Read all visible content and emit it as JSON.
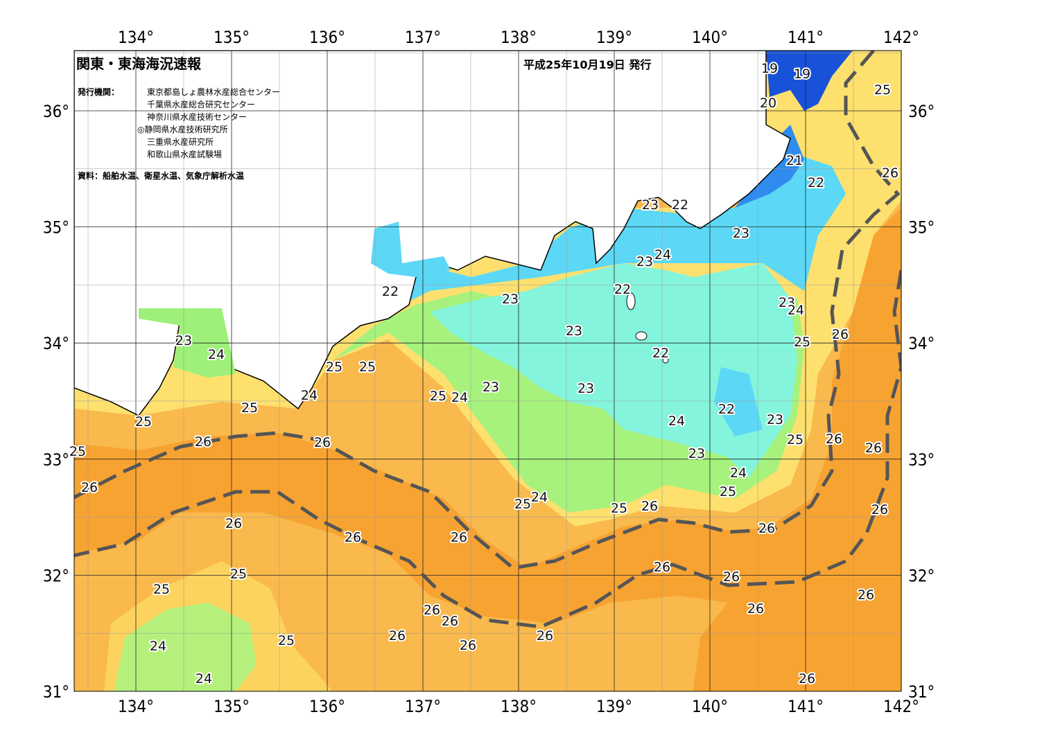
{
  "title": "関東・東海海況速報",
  "date": "平成25年10月19日 発行",
  "issuers_label": "発行機関：",
  "issuers": [
    "東京都島しょ農林水産総合センター",
    "千葉県水産総合研究センター",
    "神奈川県水産技術センター",
    "◎静岡県水産技術研究所",
    "三重県水産研究所",
    "和歌山県水産試験場"
  ],
  "source": "資料：船舶水温、衛星水温、気象庁解析水温",
  "lon_labels": [
    "134°",
    "135°",
    "136°",
    "137°",
    "138°",
    "139°",
    "140°",
    "141°",
    "142°"
  ],
  "lat_labels": [
    "36°",
    "35°",
    "34°",
    "33°",
    "32°",
    "31°"
  ],
  "contour_labels": [
    "19",
    "19",
    "20",
    "21",
    "22",
    "25",
    "26",
    "23",
    "22",
    "23",
    "24",
    "23",
    "22",
    "22",
    "23",
    "23",
    "24",
    "23",
    "26",
    "25",
    "23",
    "22",
    "24",
    "25",
    "25",
    "23",
    "23",
    "25",
    "24",
    "24",
    "25",
    "22",
    "24",
    "23",
    "25",
    "26",
    "25",
    "26",
    "26",
    "26",
    "23",
    "25",
    "24",
    "26",
    "25",
    "24",
    "25",
    "25",
    "26",
    "26",
    "26",
    "26",
    "26",
    "26",
    "26",
    "25",
    "26",
    "25",
    "26",
    "26",
    "26",
    "26",
    "26",
    "26",
    "25",
    "26",
    "24",
    "26",
    "24"
  ]
}
